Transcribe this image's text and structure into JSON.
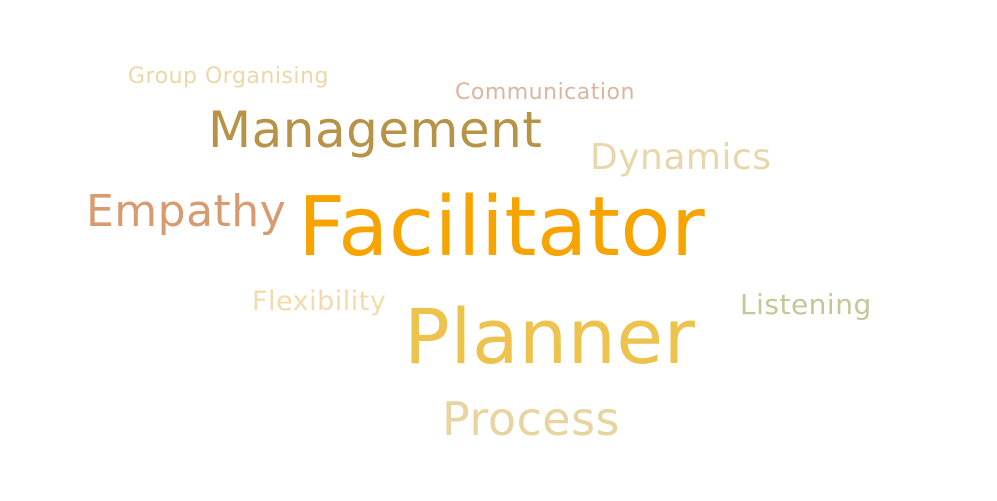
{
  "words": [
    {
      "text": "Group Organising",
      "color": "#ead8a8"
    },
    {
      "text": "Communication",
      "color": "#d9b6a0"
    },
    {
      "text": "Management",
      "color": "#b69347"
    },
    {
      "text": "Dynamics",
      "color": "#e8d7aa"
    },
    {
      "text": "Empathy",
      "color": "#d89a6f"
    },
    {
      "text": "Facilitator",
      "color": "#f7a300"
    },
    {
      "text": "Flexibility",
      "color": "#f1dcaa"
    },
    {
      "text": "Listening",
      "color": "#c7c696"
    },
    {
      "text": "Planner",
      "color": "#edc24d"
    },
    {
      "text": "Process",
      "color": "#e8d4a0"
    }
  ]
}
